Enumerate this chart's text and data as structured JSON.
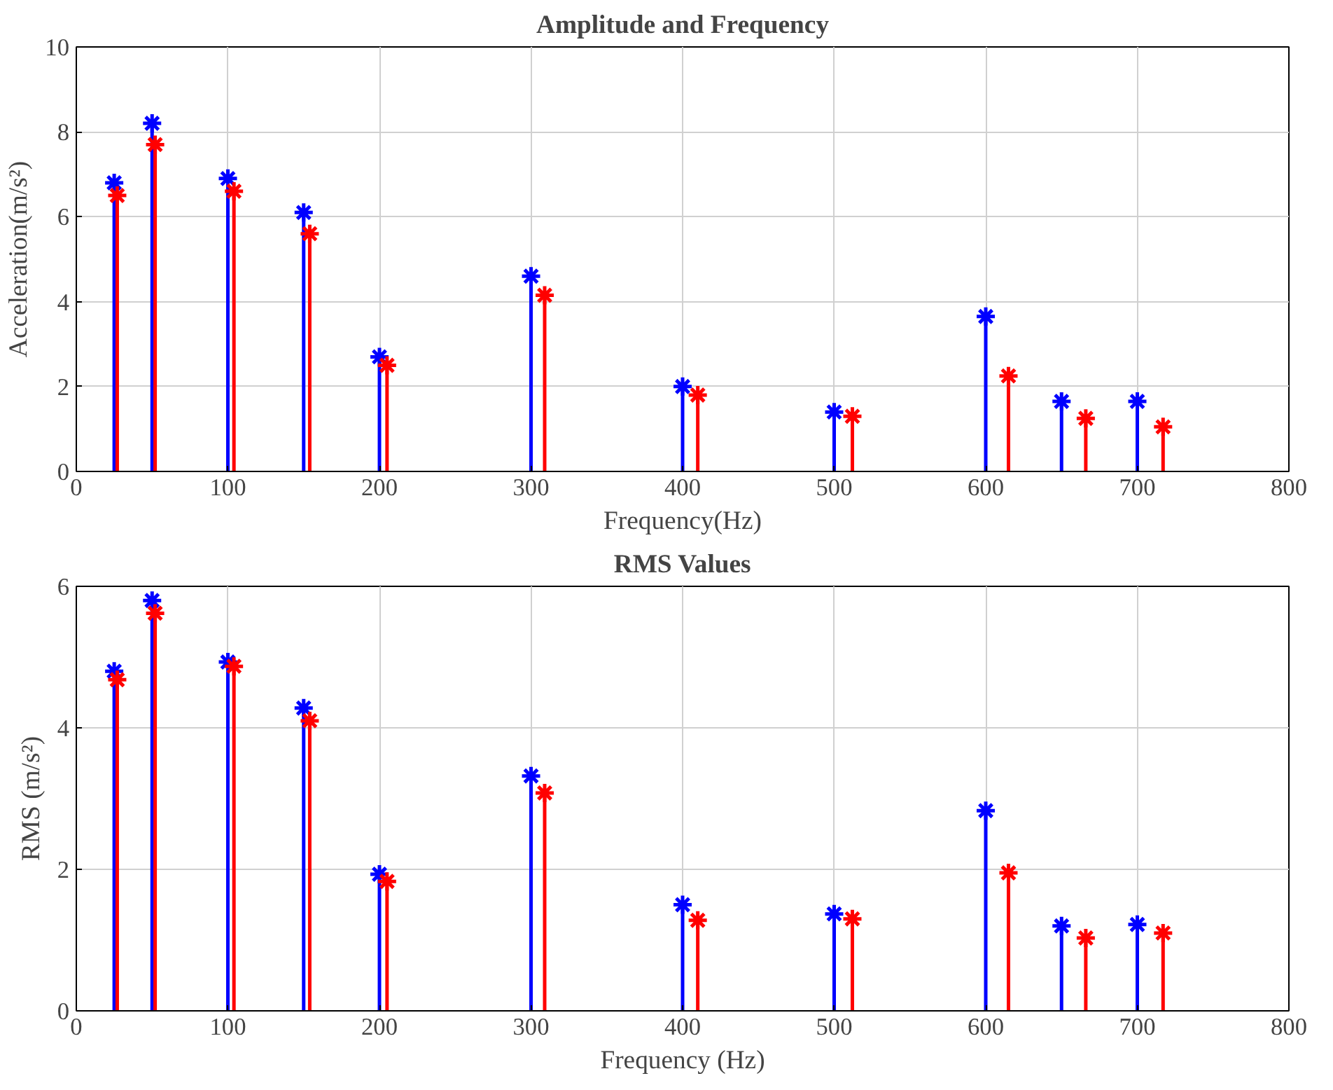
{
  "chart_data": [
    {
      "type": "lollipop",
      "title": "Amplitude and Frequency",
      "xlabel": "Frequency(Hz)",
      "ylabel": "Acceleration(m/s²)",
      "xlim": [
        0,
        800
      ],
      "xticks": [
        0,
        100,
        200,
        300,
        400,
        500,
        600,
        700,
        800
      ],
      "ylim": [
        0,
        10
      ],
      "yticks": [
        0,
        2,
        4,
        6,
        8,
        10
      ],
      "grid": true,
      "marker": "cross",
      "series": [
        {
          "color": "#0000ff",
          "x": [
            25,
            50,
            100,
            150,
            200,
            300,
            400,
            500,
            600,
            650,
            700
          ],
          "values": [
            6.8,
            8.2,
            6.9,
            6.1,
            2.7,
            4.6,
            2.0,
            1.4,
            3.65,
            1.65,
            1.65
          ]
        },
        {
          "color": "#ff0000",
          "x": [
            27,
            52,
            104,
            154,
            205,
            309,
            410,
            512,
            615,
            666,
            717
          ],
          "values": [
            6.5,
            7.7,
            6.6,
            5.6,
            2.5,
            4.15,
            1.8,
            1.3,
            2.25,
            1.25,
            1.05
          ]
        }
      ]
    },
    {
      "type": "lollipop",
      "title": "RMS Values",
      "xlabel": "Frequency (Hz)",
      "ylabel": "RMS (m/s²)",
      "xlim": [
        0,
        800
      ],
      "xticks": [
        0,
        100,
        200,
        300,
        400,
        500,
        600,
        700,
        800
      ],
      "ylim": [
        0,
        6
      ],
      "yticks": [
        0,
        2,
        4,
        6
      ],
      "grid": true,
      "marker": "cross",
      "series": [
        {
          "color": "#0000ff",
          "x": [
            25,
            50,
            100,
            150,
            200,
            300,
            400,
            500,
            600,
            650,
            700
          ],
          "values": [
            4.8,
            5.8,
            4.93,
            4.28,
            1.93,
            3.32,
            1.5,
            1.37,
            2.83,
            1.2,
            1.22
          ]
        },
        {
          "color": "#ff0000",
          "x": [
            27,
            52,
            104,
            154,
            205,
            309,
            410,
            512,
            615,
            666,
            717
          ],
          "values": [
            4.68,
            5.62,
            4.87,
            4.1,
            1.83,
            3.08,
            1.28,
            1.3,
            1.95,
            1.03,
            1.1
          ]
        }
      ]
    }
  ]
}
